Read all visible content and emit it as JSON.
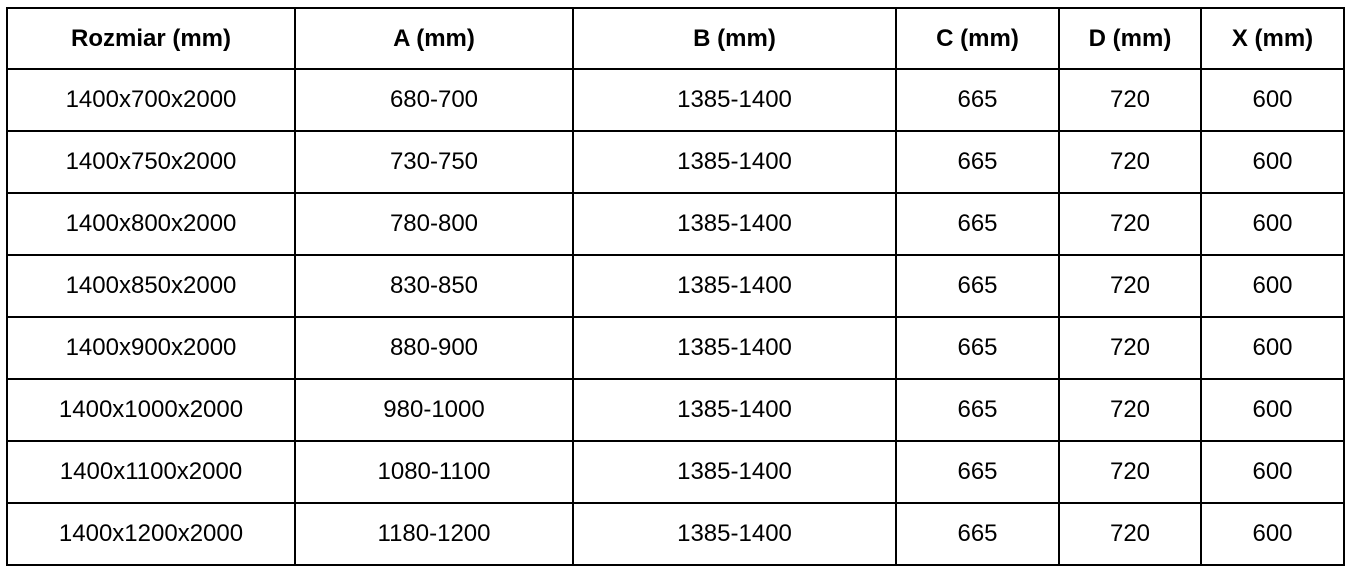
{
  "headers": [
    "Rozmiar (mm)",
    "A (mm)",
    "B (mm)",
    "C (mm)",
    "D (mm)",
    "X (mm)"
  ],
  "rows": [
    [
      "1400x700x2000",
      "680-700",
      "1385-1400",
      "665",
      "720",
      "600"
    ],
    [
      "1400x750x2000",
      "730-750",
      "1385-1400",
      "665",
      "720",
      "600"
    ],
    [
      "1400x800x2000",
      "780-800",
      "1385-1400",
      "665",
      "720",
      "600"
    ],
    [
      "1400x850x2000",
      "830-850",
      "1385-1400",
      "665",
      "720",
      "600"
    ],
    [
      "1400x900x2000",
      "880-900",
      "1385-1400",
      "665",
      "720",
      "600"
    ],
    [
      "1400x1000x2000",
      "980-1000",
      "1385-1400",
      "665",
      "720",
      "600"
    ],
    [
      "1400x1100x2000",
      "1080-1100",
      "1385-1400",
      "665",
      "720",
      "600"
    ],
    [
      "1400x1200x2000",
      "1180-1200",
      "1385-1400",
      "665",
      "720",
      "600"
    ]
  ]
}
